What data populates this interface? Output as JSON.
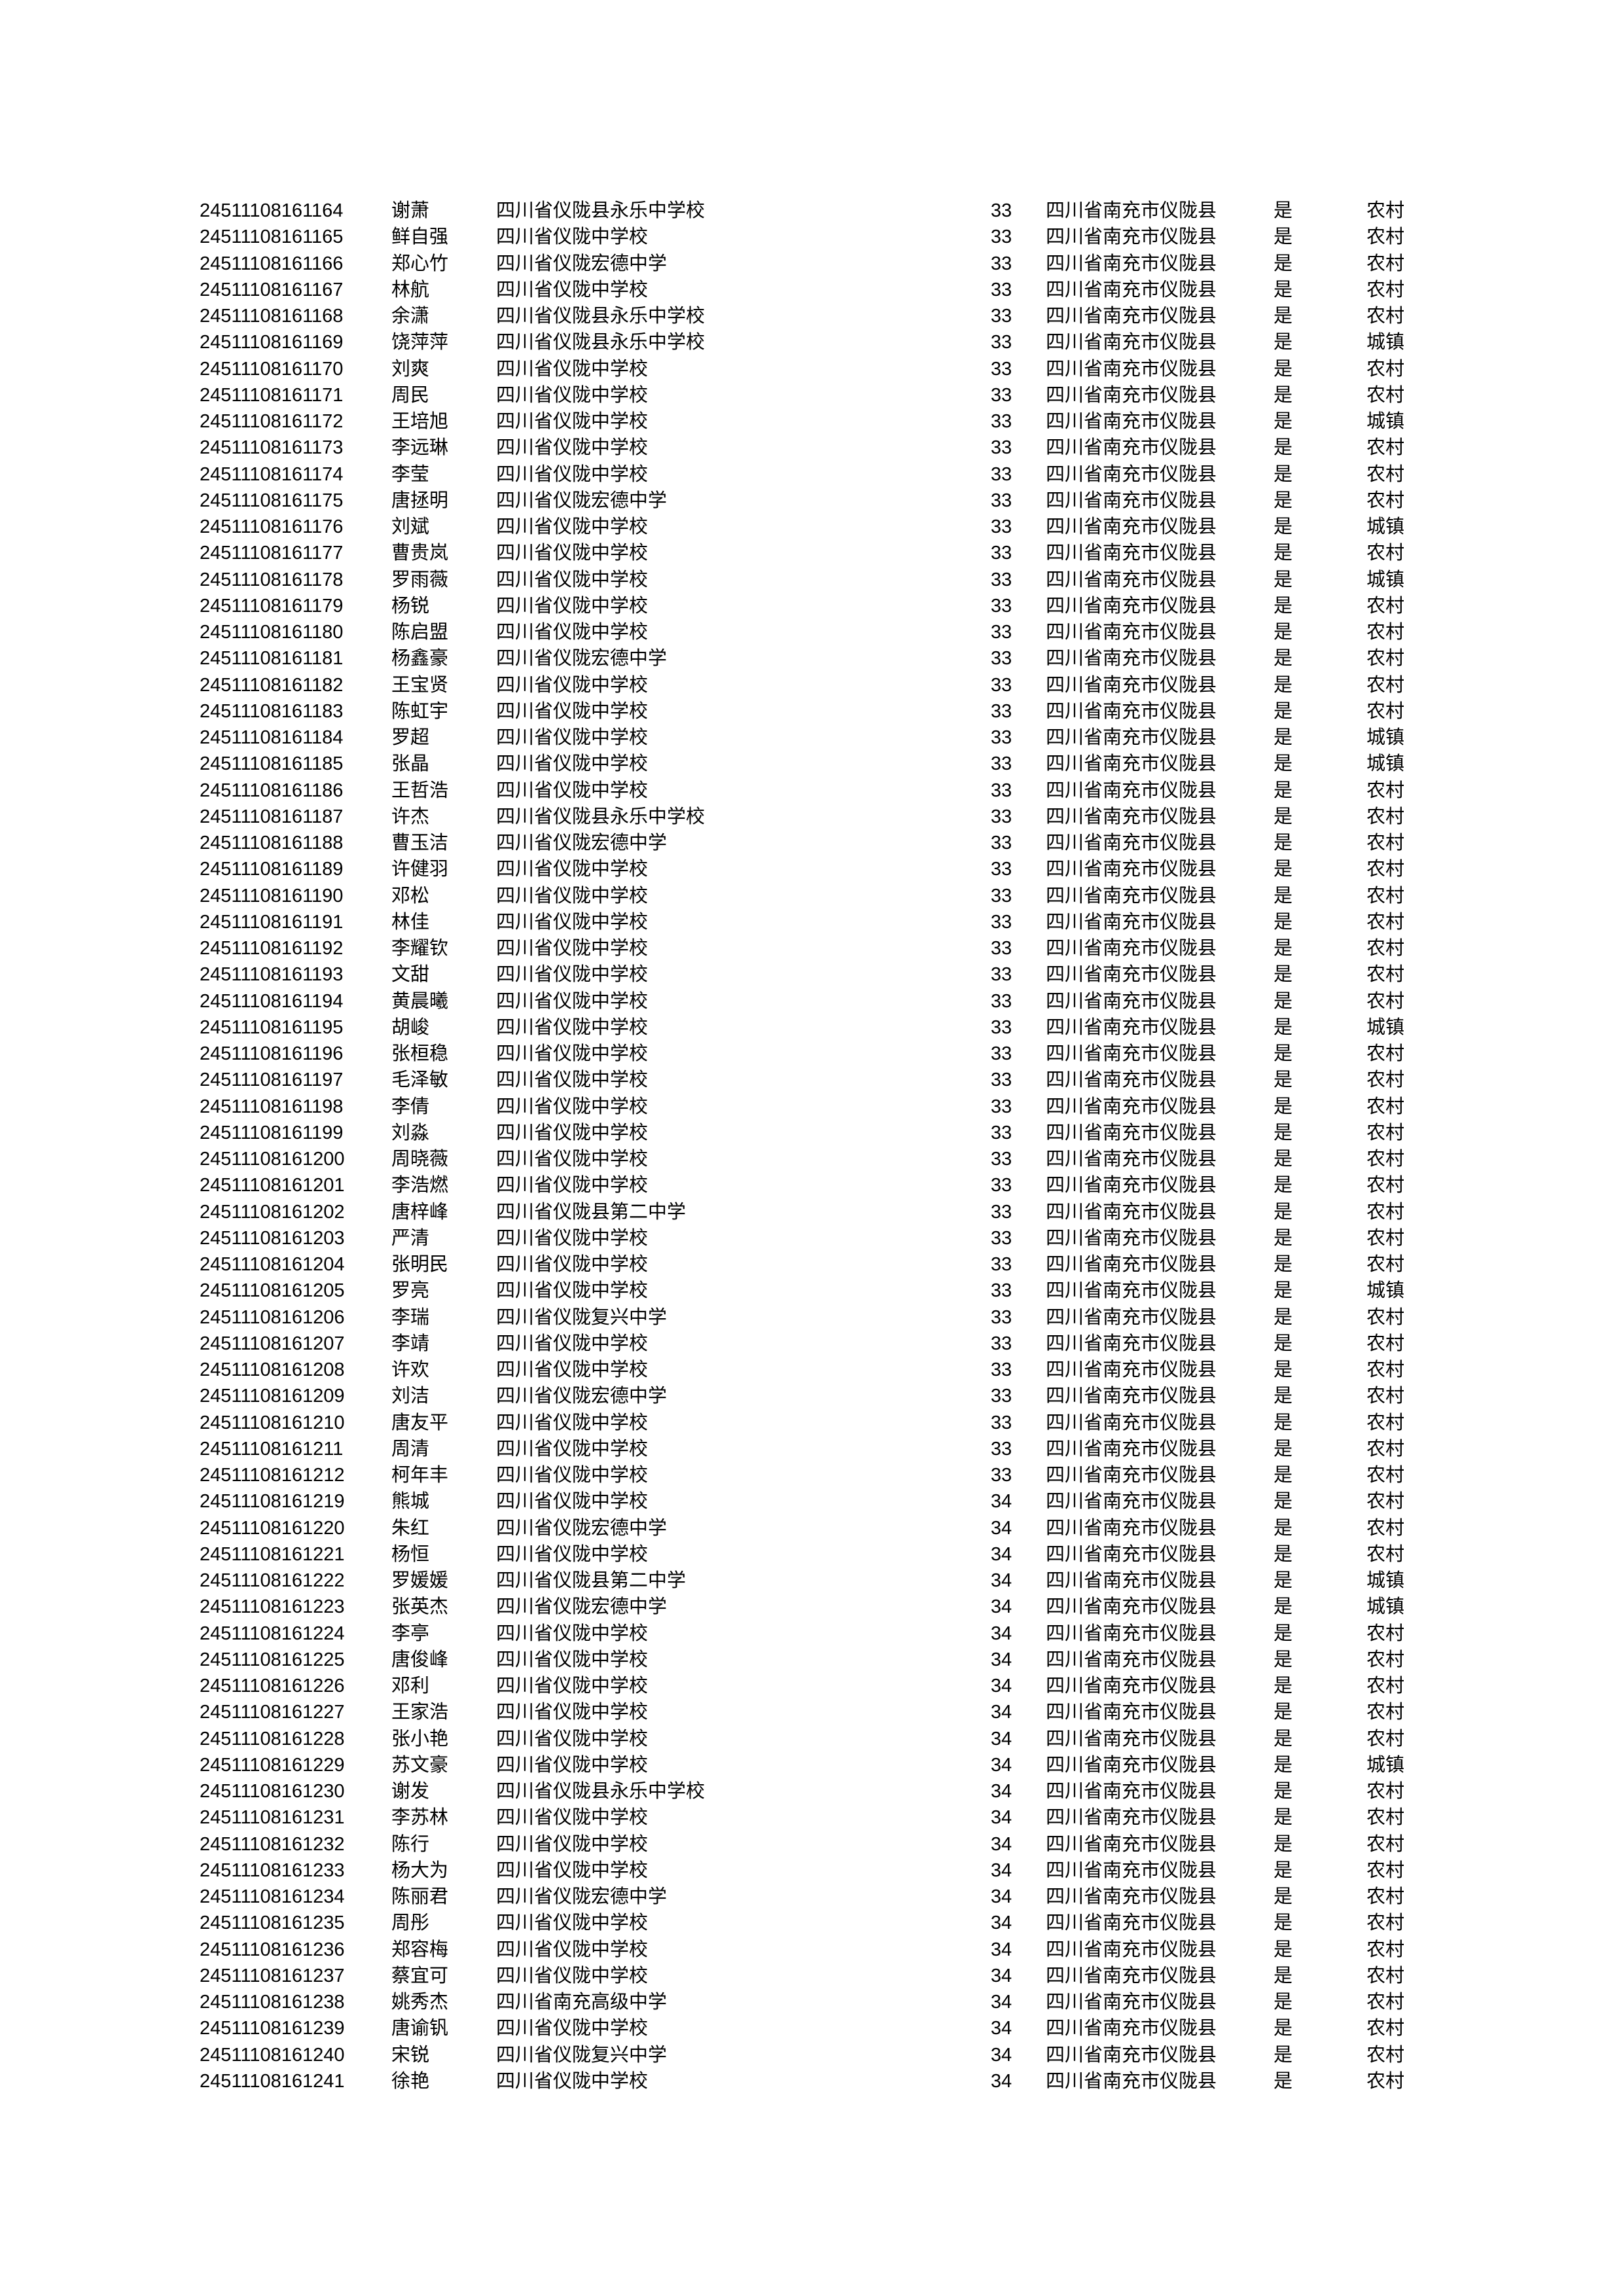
{
  "rows": [
    [
      "24511108161164",
      "谢萧",
      "四川省仪陇县永乐中学校",
      "33",
      "四川省南充市仪陇县",
      "是",
      "农村"
    ],
    [
      "24511108161165",
      "鲜自强",
      "四川省仪陇中学校",
      "33",
      "四川省南充市仪陇县",
      "是",
      "农村"
    ],
    [
      "24511108161166",
      "郑心竹",
      "四川省仪陇宏德中学",
      "33",
      "四川省南充市仪陇县",
      "是",
      "农村"
    ],
    [
      "24511108161167",
      "林航",
      "四川省仪陇中学校",
      "33",
      "四川省南充市仪陇县",
      "是",
      "农村"
    ],
    [
      "24511108161168",
      "余潇",
      "四川省仪陇县永乐中学校",
      "33",
      "四川省南充市仪陇县",
      "是",
      "农村"
    ],
    [
      "24511108161169",
      "饶萍萍",
      "四川省仪陇县永乐中学校",
      "33",
      "四川省南充市仪陇县",
      "是",
      "城镇"
    ],
    [
      "24511108161170",
      "刘爽",
      "四川省仪陇中学校",
      "33",
      "四川省南充市仪陇县",
      "是",
      "农村"
    ],
    [
      "24511108161171",
      "周民",
      "四川省仪陇中学校",
      "33",
      "四川省南充市仪陇县",
      "是",
      "农村"
    ],
    [
      "24511108161172",
      "王培旭",
      "四川省仪陇中学校",
      "33",
      "四川省南充市仪陇县",
      "是",
      "城镇"
    ],
    [
      "24511108161173",
      "李远琳",
      "四川省仪陇中学校",
      "33",
      "四川省南充市仪陇县",
      "是",
      "农村"
    ],
    [
      "24511108161174",
      "李莹",
      "四川省仪陇中学校",
      "33",
      "四川省南充市仪陇县",
      "是",
      "农村"
    ],
    [
      "24511108161175",
      "唐拯明",
      "四川省仪陇宏德中学",
      "33",
      "四川省南充市仪陇县",
      "是",
      "农村"
    ],
    [
      "24511108161176",
      "刘斌",
      "四川省仪陇中学校",
      "33",
      "四川省南充市仪陇县",
      "是",
      "城镇"
    ],
    [
      "24511108161177",
      "曹贵岚",
      "四川省仪陇中学校",
      "33",
      "四川省南充市仪陇县",
      "是",
      "农村"
    ],
    [
      "24511108161178",
      "罗雨薇",
      "四川省仪陇中学校",
      "33",
      "四川省南充市仪陇县",
      "是",
      "城镇"
    ],
    [
      "24511108161179",
      "杨锐",
      "四川省仪陇中学校",
      "33",
      "四川省南充市仪陇县",
      "是",
      "农村"
    ],
    [
      "24511108161180",
      "陈启盟",
      "四川省仪陇中学校",
      "33",
      "四川省南充市仪陇县",
      "是",
      "农村"
    ],
    [
      "24511108161181",
      "杨鑫豪",
      "四川省仪陇宏德中学",
      "33",
      "四川省南充市仪陇县",
      "是",
      "农村"
    ],
    [
      "24511108161182",
      "王宝贤",
      "四川省仪陇中学校",
      "33",
      "四川省南充市仪陇县",
      "是",
      "农村"
    ],
    [
      "24511108161183",
      "陈虹宇",
      "四川省仪陇中学校",
      "33",
      "四川省南充市仪陇县",
      "是",
      "农村"
    ],
    [
      "24511108161184",
      "罗超",
      "四川省仪陇中学校",
      "33",
      "四川省南充市仪陇县",
      "是",
      "城镇"
    ],
    [
      "24511108161185",
      "张晶",
      "四川省仪陇中学校",
      "33",
      "四川省南充市仪陇县",
      "是",
      "城镇"
    ],
    [
      "24511108161186",
      "王哲浩",
      "四川省仪陇中学校",
      "33",
      "四川省南充市仪陇县",
      "是",
      "农村"
    ],
    [
      "24511108161187",
      "许杰",
      "四川省仪陇县永乐中学校",
      "33",
      "四川省南充市仪陇县",
      "是",
      "农村"
    ],
    [
      "24511108161188",
      "曹玉洁",
      "四川省仪陇宏德中学",
      "33",
      "四川省南充市仪陇县",
      "是",
      "农村"
    ],
    [
      "24511108161189",
      "许健羽",
      "四川省仪陇中学校",
      "33",
      "四川省南充市仪陇县",
      "是",
      "农村"
    ],
    [
      "24511108161190",
      "邓松",
      "四川省仪陇中学校",
      "33",
      "四川省南充市仪陇县",
      "是",
      "农村"
    ],
    [
      "24511108161191",
      "林佳",
      "四川省仪陇中学校",
      "33",
      "四川省南充市仪陇县",
      "是",
      "农村"
    ],
    [
      "24511108161192",
      "李耀钦",
      "四川省仪陇中学校",
      "33",
      "四川省南充市仪陇县",
      "是",
      "农村"
    ],
    [
      "24511108161193",
      "文甜",
      "四川省仪陇中学校",
      "33",
      "四川省南充市仪陇县",
      "是",
      "农村"
    ],
    [
      "24511108161194",
      "黄晨曦",
      "四川省仪陇中学校",
      "33",
      "四川省南充市仪陇县",
      "是",
      "农村"
    ],
    [
      "24511108161195",
      "胡峻",
      "四川省仪陇中学校",
      "33",
      "四川省南充市仪陇县",
      "是",
      "城镇"
    ],
    [
      "24511108161196",
      "张桓稳",
      "四川省仪陇中学校",
      "33",
      "四川省南充市仪陇县",
      "是",
      "农村"
    ],
    [
      "24511108161197",
      "毛泽敏",
      "四川省仪陇中学校",
      "33",
      "四川省南充市仪陇县",
      "是",
      "农村"
    ],
    [
      "24511108161198",
      "李倩",
      "四川省仪陇中学校",
      "33",
      "四川省南充市仪陇县",
      "是",
      "农村"
    ],
    [
      "24511108161199",
      "刘淼",
      "四川省仪陇中学校",
      "33",
      "四川省南充市仪陇县",
      "是",
      "农村"
    ],
    [
      "24511108161200",
      "周晓薇",
      "四川省仪陇中学校",
      "33",
      "四川省南充市仪陇县",
      "是",
      "农村"
    ],
    [
      "24511108161201",
      "李浩燃",
      "四川省仪陇中学校",
      "33",
      "四川省南充市仪陇县",
      "是",
      "农村"
    ],
    [
      "24511108161202",
      "唐梓峰",
      "四川省仪陇县第二中学",
      "33",
      "四川省南充市仪陇县",
      "是",
      "农村"
    ],
    [
      "24511108161203",
      "严清",
      "四川省仪陇中学校",
      "33",
      "四川省南充市仪陇县",
      "是",
      "农村"
    ],
    [
      "24511108161204",
      "张明民",
      "四川省仪陇中学校",
      "33",
      "四川省南充市仪陇县",
      "是",
      "农村"
    ],
    [
      "24511108161205",
      "罗亮",
      "四川省仪陇中学校",
      "33",
      "四川省南充市仪陇县",
      "是",
      "城镇"
    ],
    [
      "24511108161206",
      "李瑞",
      "四川省仪陇复兴中学",
      "33",
      "四川省南充市仪陇县",
      "是",
      "农村"
    ],
    [
      "24511108161207",
      "李靖",
      "四川省仪陇中学校",
      "33",
      "四川省南充市仪陇县",
      "是",
      "农村"
    ],
    [
      "24511108161208",
      "许欢",
      "四川省仪陇中学校",
      "33",
      "四川省南充市仪陇县",
      "是",
      "农村"
    ],
    [
      "24511108161209",
      "刘洁",
      "四川省仪陇宏德中学",
      "33",
      "四川省南充市仪陇县",
      "是",
      "农村"
    ],
    [
      "24511108161210",
      "唐友平",
      "四川省仪陇中学校",
      "33",
      "四川省南充市仪陇县",
      "是",
      "农村"
    ],
    [
      "24511108161211",
      "周清",
      "四川省仪陇中学校",
      "33",
      "四川省南充市仪陇县",
      "是",
      "农村"
    ],
    [
      "24511108161212",
      "柯年丰",
      "四川省仪陇中学校",
      "33",
      "四川省南充市仪陇县",
      "是",
      "农村"
    ],
    [
      "24511108161219",
      "熊城",
      "四川省仪陇中学校",
      "34",
      "四川省南充市仪陇县",
      "是",
      "农村"
    ],
    [
      "24511108161220",
      "朱红",
      "四川省仪陇宏德中学",
      "34",
      "四川省南充市仪陇县",
      "是",
      "农村"
    ],
    [
      "24511108161221",
      "杨恒",
      "四川省仪陇中学校",
      "34",
      "四川省南充市仪陇县",
      "是",
      "农村"
    ],
    [
      "24511108161222",
      "罗媛媛",
      "四川省仪陇县第二中学",
      "34",
      "四川省南充市仪陇县",
      "是",
      "城镇"
    ],
    [
      "24511108161223",
      "张英杰",
      "四川省仪陇宏德中学",
      "34",
      "四川省南充市仪陇县",
      "是",
      "城镇"
    ],
    [
      "24511108161224",
      "李亭",
      "四川省仪陇中学校",
      "34",
      "四川省南充市仪陇县",
      "是",
      "农村"
    ],
    [
      "24511108161225",
      "唐俊峰",
      "四川省仪陇中学校",
      "34",
      "四川省南充市仪陇县",
      "是",
      "农村"
    ],
    [
      "24511108161226",
      "邓利",
      "四川省仪陇中学校",
      "34",
      "四川省南充市仪陇县",
      "是",
      "农村"
    ],
    [
      "24511108161227",
      "王家浩",
      "四川省仪陇中学校",
      "34",
      "四川省南充市仪陇县",
      "是",
      "农村"
    ],
    [
      "24511108161228",
      "张小艳",
      "四川省仪陇中学校",
      "34",
      "四川省南充市仪陇县",
      "是",
      "农村"
    ],
    [
      "24511108161229",
      "苏文豪",
      "四川省仪陇中学校",
      "34",
      "四川省南充市仪陇县",
      "是",
      "城镇"
    ],
    [
      "24511108161230",
      "谢发",
      "四川省仪陇县永乐中学校",
      "34",
      "四川省南充市仪陇县",
      "是",
      "农村"
    ],
    [
      "24511108161231",
      "李苏林",
      "四川省仪陇中学校",
      "34",
      "四川省南充市仪陇县",
      "是",
      "农村"
    ],
    [
      "24511108161232",
      "陈行",
      "四川省仪陇中学校",
      "34",
      "四川省南充市仪陇县",
      "是",
      "农村"
    ],
    [
      "24511108161233",
      "杨大为",
      "四川省仪陇中学校",
      "34",
      "四川省南充市仪陇县",
      "是",
      "农村"
    ],
    [
      "24511108161234",
      "陈丽君",
      "四川省仪陇宏德中学",
      "34",
      "四川省南充市仪陇县",
      "是",
      "农村"
    ],
    [
      "24511108161235",
      "周彤",
      "四川省仪陇中学校",
      "34",
      "四川省南充市仪陇县",
      "是",
      "农村"
    ],
    [
      "24511108161236",
      "郑容梅",
      "四川省仪陇中学校",
      "34",
      "四川省南充市仪陇县",
      "是",
      "农村"
    ],
    [
      "24511108161237",
      "蔡宜可",
      "四川省仪陇中学校",
      "34",
      "四川省南充市仪陇县",
      "是",
      "农村"
    ],
    [
      "24511108161238",
      "姚秀杰",
      "四川省南充高级中学",
      "34",
      "四川省南充市仪陇县",
      "是",
      "农村"
    ],
    [
      "24511108161239",
      "唐谕钒",
      "四川省仪陇中学校",
      "34",
      "四川省南充市仪陇县",
      "是",
      "农村"
    ],
    [
      "24511108161240",
      "宋锐",
      "四川省仪陇复兴中学",
      "34",
      "四川省南充市仪陇县",
      "是",
      "农村"
    ],
    [
      "24511108161241",
      "徐艳",
      "四川省仪陇中学校",
      "34",
      "四川省南充市仪陇县",
      "是",
      "农村"
    ]
  ]
}
